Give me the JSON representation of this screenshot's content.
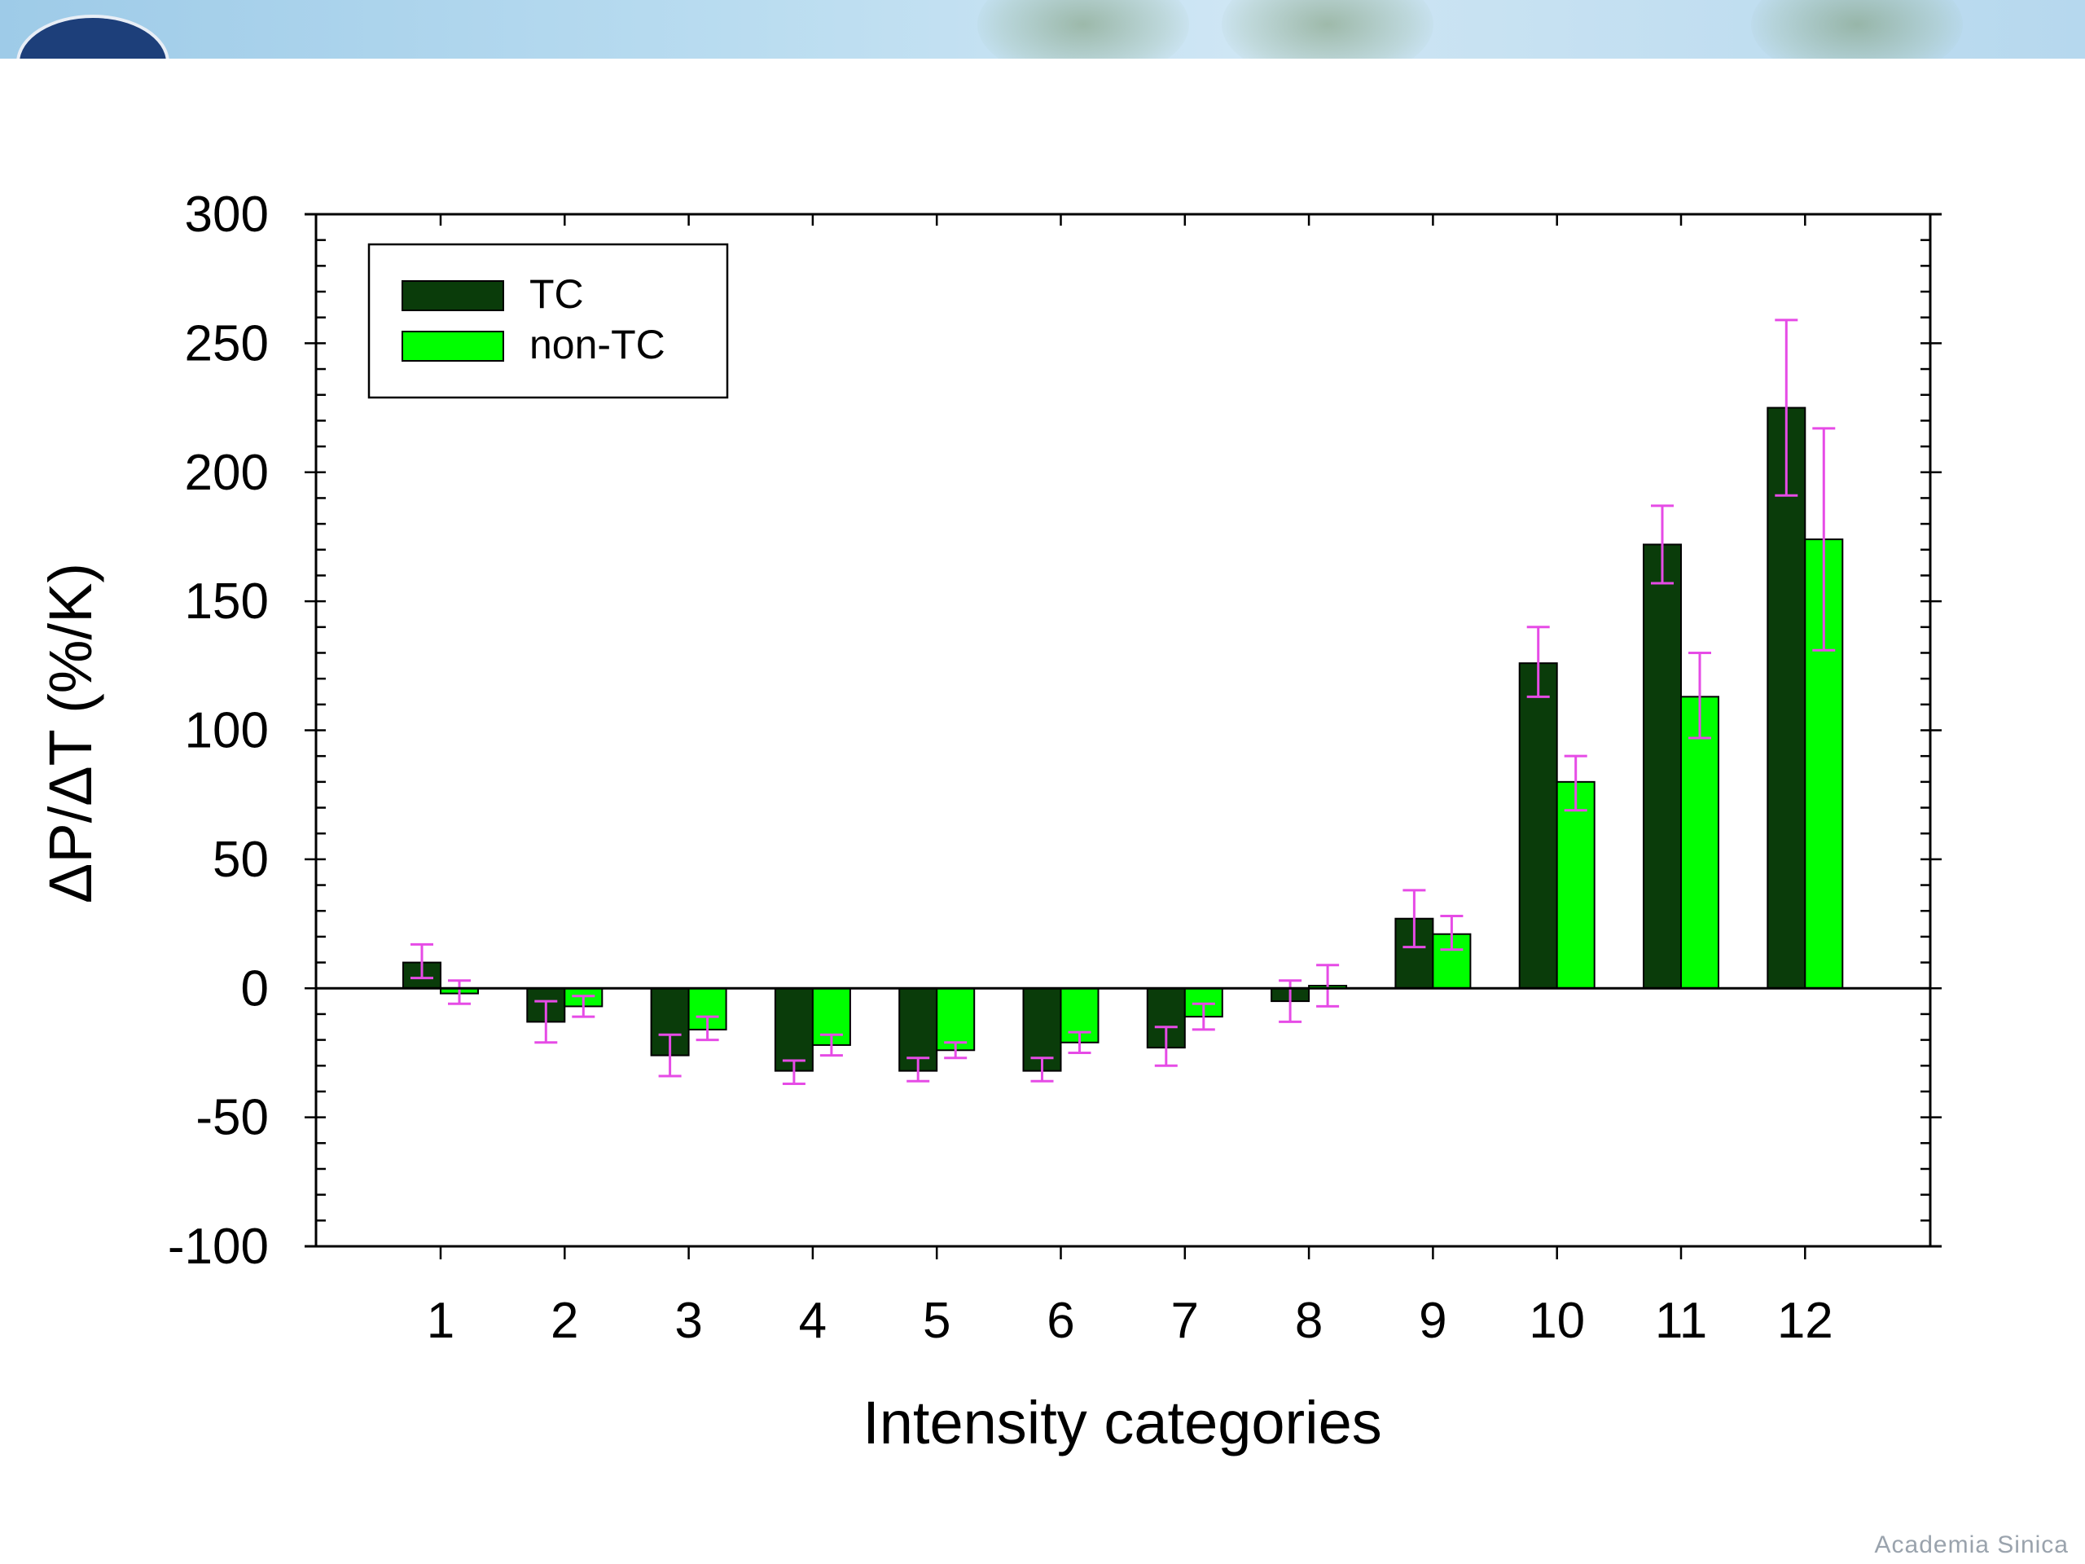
{
  "footer": {
    "text": "Academia Sinica"
  },
  "chart_data": {
    "type": "bar",
    "xlabel": "Intensity categories",
    "ylabel": "ΔP/ΔT (%/K)",
    "ylim": [
      -100,
      300
    ],
    "yticks": [
      300,
      250,
      200,
      150,
      100,
      50,
      0,
      -50,
      -100
    ],
    "categories": [
      "1",
      "2",
      "3",
      "4",
      "5",
      "6",
      "7",
      "8",
      "9",
      "10",
      "11",
      "12"
    ],
    "legend_position": "top-left",
    "grid": false,
    "series": [
      {
        "name": "TC",
        "color": "#0a3c0a",
        "values": [
          10,
          -13,
          -26,
          -32,
          -32,
          -32,
          -23,
          -5,
          27,
          126,
          172,
          225
        ],
        "error_low": [
          4,
          -21,
          -34,
          -37,
          -36,
          -36,
          -30,
          -13,
          16,
          113,
          157,
          191
        ],
        "error_high": [
          17,
          -5,
          -18,
          -28,
          -27,
          -27,
          -15,
          3,
          38,
          140,
          187,
          259
        ]
      },
      {
        "name": "non-TC",
        "color": "#00ff00",
        "values": [
          -2,
          -7,
          -16,
          -22,
          -24,
          -21,
          -11,
          1,
          21,
          80,
          113,
          174
        ],
        "error_low": [
          -6,
          -11,
          -20,
          -26,
          -27,
          -25,
          -16,
          -7,
          15,
          69,
          97,
          131
        ],
        "error_high": [
          3,
          -3,
          -11,
          -18,
          -21,
          -17,
          -6,
          9,
          28,
          90,
          130,
          217
        ]
      }
    ],
    "error_bar_color": "#e64be6"
  }
}
